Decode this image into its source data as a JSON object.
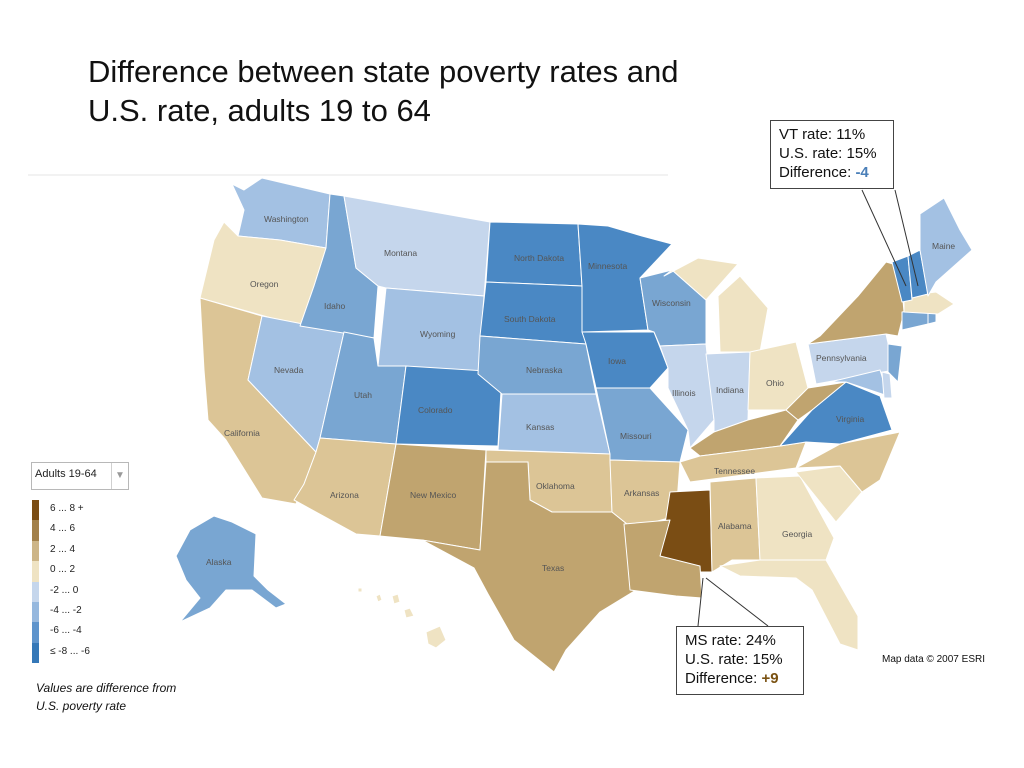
{
  "title": {
    "line1": "Difference between state poverty rates and",
    "line2": "U.S. rate, adults 19 to 64"
  },
  "colors": {
    "b4": "#4a88c4",
    "b3": "#79a6d2",
    "b2": "#a3c1e3",
    "b1": "#c5d6ec",
    "t1": "#efe3c3",
    "t2": "#dcc596",
    "t3": "#c0a46f",
    "t4": "#7a4d14",
    "label_negative": "#4a7fb8",
    "label_positive": "#7a5212"
  },
  "states": {
    "wa": {
      "label": "Washington"
    },
    "or": {
      "label": "Oregon"
    },
    "ca": {
      "label": "California"
    },
    "nv": {
      "label": "Nevada"
    },
    "id": {
      "label": "Idaho"
    },
    "mt": {
      "label": "Montana"
    },
    "wy": {
      "label": "Wyoming"
    },
    "ut": {
      "label": "Utah"
    },
    "co": {
      "label": "Colorado"
    },
    "az": {
      "label": "Arizona"
    },
    "nm": {
      "label": "New Mexico"
    },
    "nd": {
      "label": "North Dakota"
    },
    "sd": {
      "label": "South Dakota"
    },
    "ne": {
      "label": "Nebraska"
    },
    "ks": {
      "label": "Kansas"
    },
    "ok": {
      "label": "Oklahoma"
    },
    "tx": {
      "label": "Texas"
    },
    "mn": {
      "label": "Minnesota"
    },
    "ia": {
      "label": "Iowa"
    },
    "mo": {
      "label": "Missouri"
    },
    "ar": {
      "label": "Arkansas"
    },
    "wi": {
      "label": "Wisconsin"
    },
    "il": {
      "label": "Illinois"
    },
    "in": {
      "label": "Indiana"
    },
    "oh": {
      "label": "Ohio"
    },
    "tn": {
      "label": "Tennessee"
    },
    "al": {
      "label": "Alabama"
    },
    "ga": {
      "label": "Georgia"
    },
    "va": {
      "label": "Virginia"
    },
    "pa": {
      "label": "Pennsylvania"
    },
    "me": {
      "label": "Maine"
    },
    "ak": {
      "label": "Alaska"
    }
  },
  "callouts": {
    "vt": {
      "line1": "VT rate: 11%",
      "line2": "U.S. rate: 15%",
      "diff_label": "Difference:",
      "diff_value": "-4"
    },
    "ms": {
      "line1": "MS rate: 24%",
      "line2": "U.S. rate: 15%",
      "diff_label": "Difference:",
      "diff_value": "+9"
    }
  },
  "selector": {
    "value": "Adults 19-64"
  },
  "legend": {
    "items": [
      {
        "label": "6 ... 8 +",
        "color": "#7a4d14"
      },
      {
        "label": "4 ... 6",
        "color": "#a2804a"
      },
      {
        "label": "2 ... 4",
        "color": "#cdb587"
      },
      {
        "label": "0 ... 2",
        "color": "#efe3c3"
      },
      {
        "label": "-2 ... 0",
        "color": "#c5d6ec"
      },
      {
        "label": "-4 ... -2",
        "color": "#96b8de"
      },
      {
        "label": "-6 ... -4",
        "color": "#5e94cc"
      },
      {
        "label": "≤ -8 ... -6",
        "color": "#3578b8"
      }
    ]
  },
  "note": {
    "line1": "Values are difference from",
    "line2": "U.S. poverty rate"
  },
  "credit": "Map data © 2007 ESRI"
}
